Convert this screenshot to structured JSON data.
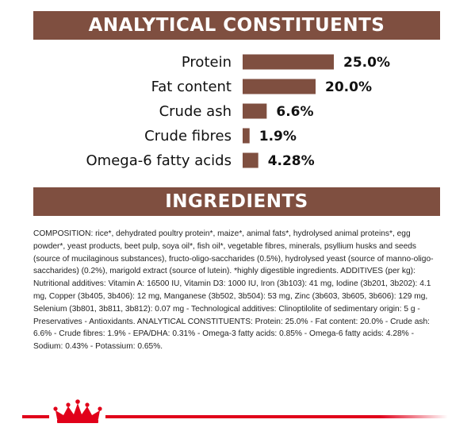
{
  "banners": {
    "analytical": "ANALYTICAL CONSTITUENTS",
    "ingredients": "INGREDIENTS"
  },
  "chart_data": {
    "type": "bar",
    "orientation": "horizontal",
    "categories": [
      "Protein",
      "Fat content",
      "Crude ash",
      "Crude fibres",
      "Omega-6 fatty acids"
    ],
    "values": [
      25.0,
      20.0,
      6.6,
      1.9,
      4.28
    ],
    "value_labels": [
      "25.0%",
      "20.0%",
      "6.6%",
      "1.9%",
      "4.28%"
    ],
    "title": "",
    "xlabel": "",
    "ylabel": "",
    "grid": false,
    "colors": {
      "bar": "#7f4f40"
    }
  },
  "ingredients": {
    "text": "COMPOSITION: rice*, dehydrated poultry protein*, maize*, animal fats*, hydrolysed animal proteins*, egg powder*, yeast products, beet pulp, soya oil*, fish oil*, vegetable fibres, minerals, psyllium husks and seeds (source of mucilaginous substances), fructo-oligo-saccharides (0.5%), hydrolysed yeast (source of manno-oligo-saccharides) (0.2%), marigold extract (source of lutein). *highly digestible ingredients. ADDITIVES (per kg): Nutritional additives: Vitamin A: 16500 IU, Vitamin D3: 1000 IU, Iron (3b103): 41 mg, Iodine (3b201, 3b202): 4.1 mg, Copper (3b405, 3b406): 12 mg, Manganese (3b502, 3b504): 53 mg, Zinc (3b603, 3b605, 3b606): 129 mg, Selenium (3b801, 3b811, 3b812): 0.07 mg - Technological additives: Clinoptilolite of sedimentary origin: 5 g - Preservatives - Antioxidants. ANALYTICAL CONSTITUENTS: Protein: 25.0% - Fat content: 20.0% - Crude ash: 6.6% - Crude fibres: 1.9% - EPA/DHA: 0.31% - Omega-3 fatty acids: 0.85% - Omega-6 fatty acids: 4.28% - Sodium: 0.43% - Potassium: 0.65%."
  },
  "footer": {
    "brand_logo": "royal-crown-logo",
    "colors": {
      "stripe": "#e1001a"
    }
  }
}
